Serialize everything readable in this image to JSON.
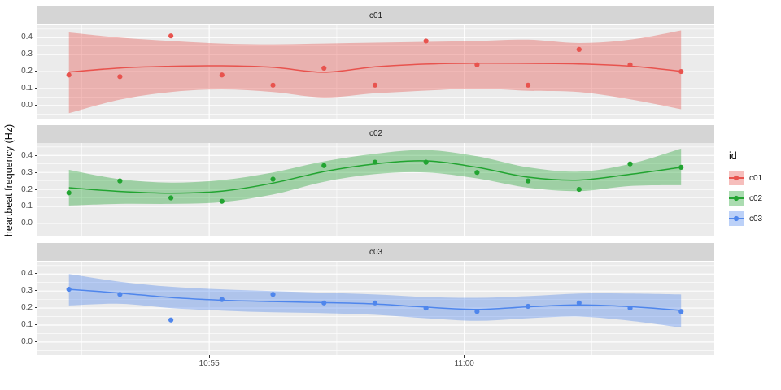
{
  "legend": {
    "title": "id",
    "entries": [
      {
        "label": "c01"
      },
      {
        "label": "c02"
      },
      {
        "label": "c03"
      }
    ]
  },
  "theme": {
    "panel_bg": "#EBEBEB",
    "strip_bg": "#D5D5D5",
    "grid_color": "#FFFFFF",
    "tick_label_color": "#4D4D4D",
    "strip_text_color": "#1A1A1A",
    "tick_mark_color": "#333333"
  },
  "chart_data": {
    "type": "scatter",
    "subtype": "faceted scatter with smoothed trend line and confidence ribbon (ggplot style)",
    "title": "",
    "xlabel": "",
    "ylabel": "heartbeat frequency (Hz)",
    "facet_variable": "id",
    "legend_position": "right",
    "grid": true,
    "y_domain": [
      -0.077,
      0.473
    ],
    "y_ticks": [
      0.0,
      0.1,
      0.2,
      0.3,
      0.4
    ],
    "y_tick_labels": [
      "0.0",
      "0.1",
      "0.2",
      "0.3",
      "0.4"
    ],
    "y_minor_ticks": [
      -0.05,
      0.05,
      0.15,
      0.25,
      0.35,
      0.45
    ],
    "x_domain": [
      "10:51:38",
      "11:04:54"
    ],
    "x_ticks": [
      "10:55:00",
      "11:00:00"
    ],
    "x_tick_labels": [
      "10:55",
      "11:00"
    ],
    "x_minor_ticks": [
      "10:52:30",
      "10:57:30",
      "11:02:30"
    ],
    "times": [
      "10:52:15",
      "10:53:15",
      "10:54:15",
      "10:55:15",
      "10:56:15",
      "10:57:15",
      "10:58:15",
      "10:59:15",
      "11:00:15",
      "11:01:15",
      "11:02:15",
      "11:03:15",
      "11:04:15"
    ],
    "facets": [
      {
        "id": "c01",
        "color": "#E8534E",
        "fill": "rgba(232,83,78,0.38)",
        "values": [
          0.18,
          0.17,
          0.41,
          0.18,
          0.12,
          0.22,
          0.12,
          0.38,
          0.24,
          0.12,
          0.33,
          0.24,
          0.2
        ],
        "trend": [
          0.197,
          0.221,
          0.231,
          0.234,
          0.225,
          0.196,
          0.228,
          0.244,
          0.249,
          0.248,
          0.245,
          0.232,
          0.202
        ],
        "ribbon_upper": [
          0.43,
          0.4,
          0.38,
          0.365,
          0.36,
          0.365,
          0.37,
          0.375,
          0.38,
          0.388,
          0.368,
          0.388,
          0.442
        ],
        "ribbon_lower": [
          -0.045,
          0.035,
          0.08,
          0.095,
          0.08,
          0.048,
          0.072,
          0.088,
          0.1,
          0.087,
          0.08,
          0.037,
          -0.022
        ]
      },
      {
        "id": "c02",
        "color": "#22A431",
        "fill": "rgba(34,164,49,0.38)",
        "values": [
          0.18,
          0.25,
          0.15,
          0.13,
          0.26,
          0.34,
          0.36,
          0.36,
          0.3,
          0.25,
          0.2,
          0.35,
          0.33
        ],
        "trend": [
          0.21,
          0.188,
          0.178,
          0.19,
          0.237,
          0.305,
          0.35,
          0.368,
          0.33,
          0.272,
          0.255,
          0.289,
          0.33
        ],
        "ribbon_upper": [
          0.315,
          0.26,
          0.24,
          0.255,
          0.3,
          0.365,
          0.41,
          0.432,
          0.395,
          0.33,
          0.305,
          0.35,
          0.44
        ],
        "ribbon_lower": [
          0.105,
          0.115,
          0.115,
          0.125,
          0.17,
          0.245,
          0.29,
          0.3,
          0.265,
          0.21,
          0.19,
          0.22,
          0.225
        ]
      },
      {
        "id": "c03",
        "color": "#4F86EC",
        "fill": "rgba(79,134,236,0.38)",
        "values": [
          0.31,
          0.28,
          0.13,
          0.25,
          0.28,
          0.23,
          0.23,
          0.2,
          0.18,
          0.21,
          0.23,
          0.2,
          0.18
        ],
        "trend": [
          0.31,
          0.288,
          0.262,
          0.246,
          0.238,
          0.232,
          0.224,
          0.205,
          0.192,
          0.207,
          0.218,
          0.208,
          0.186
        ],
        "ribbon_upper": [
          0.4,
          0.355,
          0.325,
          0.31,
          0.3,
          0.29,
          0.28,
          0.265,
          0.26,
          0.27,
          0.285,
          0.285,
          0.28
        ],
        "ribbon_lower": [
          0.215,
          0.225,
          0.2,
          0.185,
          0.175,
          0.17,
          0.16,
          0.14,
          0.125,
          0.14,
          0.15,
          0.125,
          0.085
        ]
      }
    ]
  }
}
